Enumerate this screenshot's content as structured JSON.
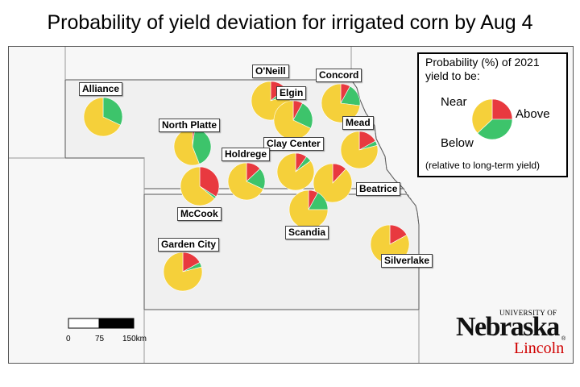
{
  "title": "Probability of yield deviation for irrigated corn by Aug 4",
  "colors": {
    "above": "#3dc46b",
    "below": "#e8393f",
    "near": "#f5d03a",
    "state_fill": "#f0f0f0",
    "outside_fill": "#f7f7f7",
    "border": "#555555"
  },
  "legend": {
    "title": "Probability (%) of 2021 yield to be:",
    "near_label": "Near",
    "above_label": "Above",
    "below_label": "Below",
    "note": "(relative to long-term yield)",
    "example": {
      "above": 38,
      "below": 25,
      "near": 37
    }
  },
  "sites": [
    {
      "name": "Alliance",
      "above": 32,
      "below": 0,
      "near": 68
    },
    {
      "name": "North Platte",
      "above": 42,
      "below": 2,
      "near": 56
    },
    {
      "name": "O'Neill",
      "above": 6,
      "below": 14,
      "near": 80
    },
    {
      "name": "Elgin",
      "above": 24,
      "below": 8,
      "near": 68
    },
    {
      "name": "Concord",
      "above": 19,
      "below": 8,
      "near": 73
    },
    {
      "name": "Mead",
      "above": 4,
      "below": 17,
      "near": 79
    },
    {
      "name": "Clay Center",
      "above": 5,
      "below": 10,
      "near": 85
    },
    {
      "name": "Holdrege",
      "above": 19,
      "below": 13,
      "near": 68
    },
    {
      "name": "McCook",
      "above": 2,
      "below": 34,
      "near": 64
    },
    {
      "name": "Beatrice",
      "above": 0,
      "below": 12,
      "near": 88
    },
    {
      "name": "Scandia",
      "above": 17,
      "below": 8,
      "near": 75
    },
    {
      "name": "Garden City",
      "above": 4,
      "below": 17,
      "near": 79
    },
    {
      "name": "Silverlake",
      "above": 0,
      "below": 17,
      "near": 83
    }
  ],
  "scale_bar": {
    "labels": [
      "0",
      "75",
      "150km"
    ]
  },
  "logo": {
    "university": "UNIVERSITY OF",
    "name": "Nebraska",
    "campus": "Lincoln",
    "reg": "®"
  }
}
